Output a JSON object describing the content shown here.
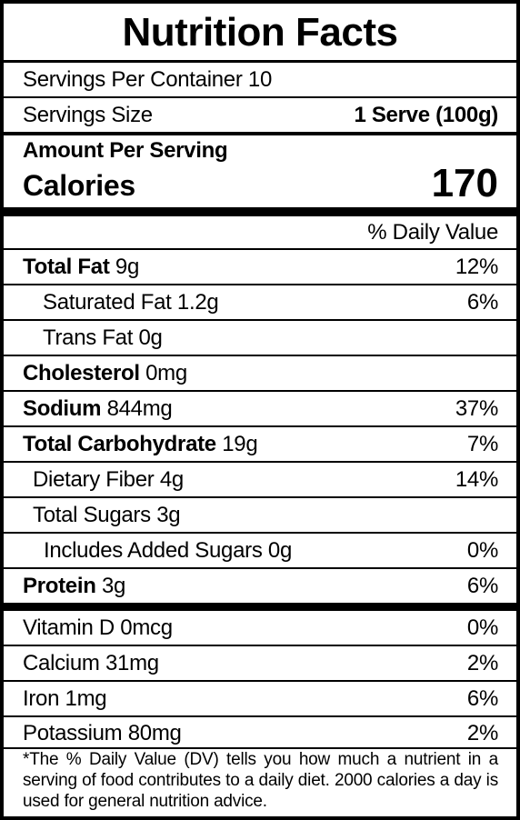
{
  "title": "Nutrition Facts",
  "servings_per_container": {
    "label": "Servings Per Container",
    "value": "10"
  },
  "serving_size": {
    "label": "Servings Size",
    "value": "1 Serve (100g)"
  },
  "amount_per_serving": "Amount Per Serving",
  "calories": {
    "label": "Calories",
    "value": "170"
  },
  "daily_value_header": "% Daily Value",
  "nutrients": [
    {
      "name": "Total Fat",
      "amount": "9g",
      "dv": "12%"
    },
    {
      "name": "Saturated Fat",
      "amount": "1.2g",
      "dv": "6%"
    },
    {
      "name": "Trans Fat",
      "amount": "0g",
      "dv": ""
    },
    {
      "name": "Cholesterol",
      "amount": "0mg",
      "dv": ""
    },
    {
      "name": "Sodium",
      "amount": "844mg",
      "dv": "37%"
    },
    {
      "name": "Total Carbohydrate",
      "amount": "19g",
      "dv": "7%"
    },
    {
      "name": "Dietary Fiber",
      "amount": "4g",
      "dv": "14%"
    },
    {
      "name": "Total Sugars",
      "amount": "3g",
      "dv": ""
    },
    {
      "name": "Includes Added Sugars",
      "amount": "0g",
      "dv": "0%"
    },
    {
      "name": "Protein",
      "amount": "3g",
      "dv": "6%"
    }
  ],
  "vitamins": [
    {
      "name": "Vitamin D",
      "amount": "0mcg",
      "dv": "0%"
    },
    {
      "name": "Calcium",
      "amount": "31mg",
      "dv": "2%"
    },
    {
      "name": "Iron",
      "amount": "1mg",
      "dv": "6%"
    },
    {
      "name": "Potassium",
      "amount": "80mg",
      "dv": "2%"
    }
  ],
  "footnote": "*The % Daily Value (DV) tells you how much a nutrient in a serving of food contributes to a daily diet. 2000 calories a day is used for general nutrition advice."
}
